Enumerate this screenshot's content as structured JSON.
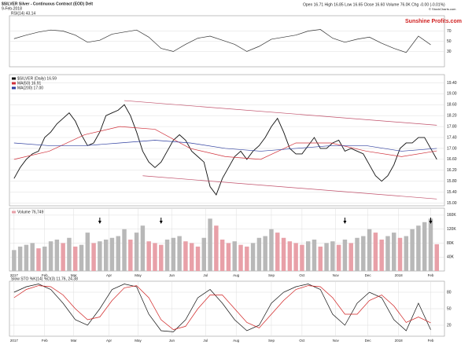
{
  "header": {
    "title": "$SILVER Silver - Continuous Contract (EOD) Delt",
    "date": "9-Feb-2018",
    "quote": "Open 16.71 High 16.85 Low 16.65 Close 16.60 Volume 76.0K Chg -0.00 (-0.01%)",
    "credit": "© StockCharts.com",
    "watermark": "Sunshine Profits.com"
  },
  "chart_data": [
    {
      "type": "line",
      "title": "RSI(14) 43.14",
      "xlim": [
        -3,
        281
      ],
      "ylim": [
        0,
        100
      ],
      "yticks": [
        30,
        50,
        70
      ],
      "series": [
        {
          "color": "#333333",
          "x": [
            0,
            8,
            16,
            24,
            32,
            40,
            48,
            56,
            64,
            72,
            80,
            88,
            96,
            104,
            112,
            120,
            128,
            136,
            144,
            152,
            160,
            168,
            176,
            184,
            192,
            200,
            208,
            216,
            224,
            232,
            240,
            248,
            256,
            264,
            272
          ],
          "values": [
            55,
            62,
            68,
            72,
            70,
            62,
            48,
            52,
            64,
            68,
            72,
            58,
            36,
            30,
            44,
            56,
            60,
            52,
            44,
            30,
            40,
            54,
            58,
            62,
            70,
            73,
            56,
            48,
            54,
            58,
            46,
            36,
            28,
            60,
            43.14
          ]
        }
      ]
    },
    {
      "type": "line",
      "xlim": [
        -3,
        281
      ],
      "ylim": [
        14.9,
        19.7
      ],
      "yticks": [
        {
          "value": 15,
          "label": "15.00"
        },
        {
          "value": 15.4,
          "label": "15.40"
        },
        {
          "value": 15.8,
          "label": "15.80"
        },
        {
          "value": 16.2,
          "label": "16.20"
        },
        {
          "value": 16.6,
          "label": "16.60"
        },
        {
          "value": 17,
          "label": "17.00"
        },
        {
          "value": 17.4,
          "label": "17.40"
        },
        {
          "value": 17.8,
          "label": "17.80"
        },
        {
          "value": 18.2,
          "label": "18.20"
        },
        {
          "value": 18.6,
          "label": "18.60"
        },
        {
          "value": 19,
          "label": "19.00"
        },
        {
          "value": 19.4,
          "label": "19.40"
        }
      ],
      "series": [
        {
          "name": "$SILVER (Daily) 16.59",
          "color": "#111111",
          "x": [
            0,
            4,
            8,
            12,
            16,
            20,
            24,
            28,
            32,
            36,
            40,
            44,
            48,
            52,
            56,
            60,
            64,
            68,
            72,
            76,
            80,
            84,
            88,
            92,
            96,
            100,
            104,
            108,
            112,
            116,
            120,
            124,
            128,
            132,
            136,
            140,
            144,
            148,
            152,
            156,
            160,
            164,
            168,
            172,
            176,
            180,
            184,
            188,
            192,
            196,
            200,
            204,
            208,
            212,
            216,
            220,
            224,
            228,
            232,
            236,
            240,
            244,
            248,
            252,
            256,
            260,
            264,
            268,
            272,
            276
          ],
          "values": [
            15.9,
            16.3,
            16.6,
            16.8,
            16.9,
            17.4,
            17.6,
            17.9,
            18.1,
            18.3,
            18.0,
            17.5,
            17.1,
            17.2,
            17.6,
            18.2,
            18.3,
            18.4,
            18.6,
            18.2,
            17.6,
            16.9,
            16.5,
            16.3,
            16.5,
            16.9,
            17.3,
            17.5,
            17.3,
            16.9,
            16.7,
            16.5,
            15.6,
            15.3,
            15.9,
            16.3,
            16.7,
            16.9,
            16.6,
            16.9,
            17.1,
            17.4,
            17.8,
            18.1,
            17.6,
            17.0,
            16.8,
            16.8,
            17.1,
            17.4,
            17.0,
            17.0,
            17.2,
            17.3,
            16.9,
            17.0,
            16.9,
            16.8,
            16.4,
            16.0,
            15.8,
            16.0,
            16.4,
            17.0,
            17.2,
            17.2,
            17.4,
            17.4,
            17.0,
            16.6
          ]
        },
        {
          "name": "MA(50) 16.91",
          "color": "#d0303a",
          "x": [
            0,
            23,
            46,
            69,
            92,
            115,
            138,
            161,
            184,
            207,
            230,
            253,
            276
          ],
          "values": [
            16.6,
            16.9,
            17.5,
            17.8,
            17.7,
            17.0,
            16.7,
            16.6,
            17.2,
            17.2,
            16.9,
            16.7,
            16.91
          ]
        },
        {
          "name": "MA(200) 17.00",
          "color": "#3040a0",
          "x": [
            0,
            23,
            46,
            69,
            92,
            115,
            138,
            161,
            184,
            207,
            230,
            253,
            276
          ],
          "values": [
            17.2,
            17.1,
            17.1,
            17.2,
            17.3,
            17.2,
            17.0,
            16.9,
            17.0,
            17.1,
            17.1,
            16.9,
            17.0
          ]
        }
      ],
      "trendlines": [
        {
          "color": "#c0506a",
          "x": [
            72,
            276
          ],
          "y": [
            18.75,
            17.85
          ]
        },
        {
          "color": "#c0506a",
          "x": [
            84,
            276
          ],
          "y": [
            16.0,
            15.15
          ]
        }
      ]
    },
    {
      "type": "bar",
      "xlim": [
        -3,
        281
      ],
      "ylim": [
        0,
        180000
      ],
      "yticks": [
        {
          "value": 40000,
          "label": "40K"
        },
        {
          "value": 80000,
          "label": "80K"
        },
        {
          "value": 120000,
          "label": "120K"
        },
        {
          "value": 160000,
          "label": "160K"
        }
      ],
      "xticks": [
        {
          "value": 0,
          "label": "2017"
        },
        {
          "value": 20,
          "label": "Feb"
        },
        {
          "value": 39,
          "label": "Mar"
        },
        {
          "value": 62,
          "label": "Apr"
        },
        {
          "value": 81,
          "label": "May"
        },
        {
          "value": 103,
          "label": "Jun"
        },
        {
          "value": 125,
          "label": "Jul"
        },
        {
          "value": 145,
          "label": "Aug"
        },
        {
          "value": 168,
          "label": "Sep"
        },
        {
          "value": 188,
          "label": "Oct"
        },
        {
          "value": 210,
          "label": "Nov"
        },
        {
          "value": 231,
          "label": "Dec"
        },
        {
          "value": 251,
          "label": "2018"
        },
        {
          "value": 272,
          "label": "Feb"
        }
      ],
      "arrows_x": [
        56,
        96,
        216,
        272
      ],
      "series": [
        {
          "name": "Volume 76,749",
          "color": "#e8a0a8",
          "x": [
            0,
            4,
            8,
            12,
            16,
            20,
            24,
            28,
            32,
            36,
            40,
            44,
            48,
            52,
            56,
            60,
            64,
            68,
            72,
            76,
            80,
            84,
            88,
            92,
            96,
            100,
            104,
            108,
            112,
            116,
            120,
            124,
            128,
            132,
            136,
            140,
            144,
            148,
            152,
            156,
            160,
            164,
            168,
            172,
            176,
            180,
            184,
            188,
            192,
            196,
            200,
            204,
            208,
            212,
            216,
            220,
            224,
            228,
            232,
            236,
            240,
            244,
            248,
            252,
            256,
            260,
            264,
            268,
            272,
            276
          ],
          "values": [
            60000,
            70000,
            75000,
            80000,
            65000,
            70000,
            85000,
            90000,
            80000,
            95000,
            70000,
            75000,
            110000,
            80000,
            85000,
            90000,
            95000,
            100000,
            120000,
            90000,
            110000,
            130000,
            85000,
            80000,
            75000,
            90000,
            95000,
            100000,
            85000,
            80000,
            70000,
            95000,
            150000,
            130000,
            90000,
            80000,
            85000,
            75000,
            70000,
            80000,
            95000,
            100000,
            120000,
            110000,
            95000,
            85000,
            80000,
            75000,
            85000,
            90000,
            70000,
            80000,
            85000,
            75000,
            90000,
            80000,
            95000,
            100000,
            120000,
            110000,
            90000,
            100000,
            110000,
            95000,
            100000,
            120000,
            130000,
            140000,
            150000,
            76749
          ]
        }
      ]
    },
    {
      "type": "line",
      "title": "Slow STO %K(14) %D(3) 11.76, 24.38",
      "xlim": [
        -3,
        281
      ],
      "ylim": [
        0,
        100
      ],
      "yticks": [
        20,
        50,
        80
      ],
      "xticks": [
        {
          "value": 0,
          "label": "2017"
        },
        {
          "value": 20,
          "label": "Feb"
        },
        {
          "value": 39,
          "label": "Mar"
        },
        {
          "value": 62,
          "label": "Apr"
        },
        {
          "value": 81,
          "label": "May"
        },
        {
          "value": 103,
          "label": "Jun"
        },
        {
          "value": 125,
          "label": "Jul"
        },
        {
          "value": 145,
          "label": "Aug"
        },
        {
          "value": 168,
          "label": "Sep"
        },
        {
          "value": 188,
          "label": "Oct"
        },
        {
          "value": 210,
          "label": "Nov"
        },
        {
          "value": 231,
          "label": "Dec"
        },
        {
          "value": 251,
          "label": "2018"
        },
        {
          "value": 272,
          "label": "Feb"
        }
      ],
      "series": [
        {
          "color": "#111111",
          "x": [
            0,
            8,
            16,
            24,
            32,
            40,
            48,
            56,
            64,
            72,
            80,
            88,
            96,
            104,
            112,
            120,
            128,
            136,
            144,
            152,
            160,
            168,
            176,
            184,
            192,
            200,
            208,
            216,
            224,
            232,
            240,
            248,
            256,
            264,
            272
          ],
          "values": [
            80,
            90,
            95,
            85,
            60,
            30,
            20,
            50,
            85,
            95,
            90,
            40,
            10,
            8,
            30,
            70,
            85,
            60,
            30,
            10,
            20,
            60,
            80,
            90,
            95,
            85,
            40,
            20,
            60,
            80,
            70,
            30,
            10,
            60,
            11.76
          ]
        },
        {
          "color": "#d02020",
          "x": [
            0,
            8,
            16,
            24,
            32,
            40,
            48,
            56,
            64,
            72,
            80,
            88,
            96,
            104,
            112,
            120,
            128,
            136,
            144,
            152,
            160,
            168,
            176,
            184,
            192,
            200,
            208,
            216,
            224,
            232,
            240,
            248,
            256,
            264,
            272
          ],
          "values": [
            70,
            85,
            92,
            90,
            75,
            50,
            30,
            35,
            65,
            88,
            92,
            70,
            30,
            12,
            18,
            50,
            75,
            75,
            50,
            25,
            15,
            40,
            65,
            85,
            92,
            90,
            70,
            40,
            40,
            65,
            75,
            55,
            25,
            35,
            24.38
          ]
        }
      ]
    }
  ]
}
